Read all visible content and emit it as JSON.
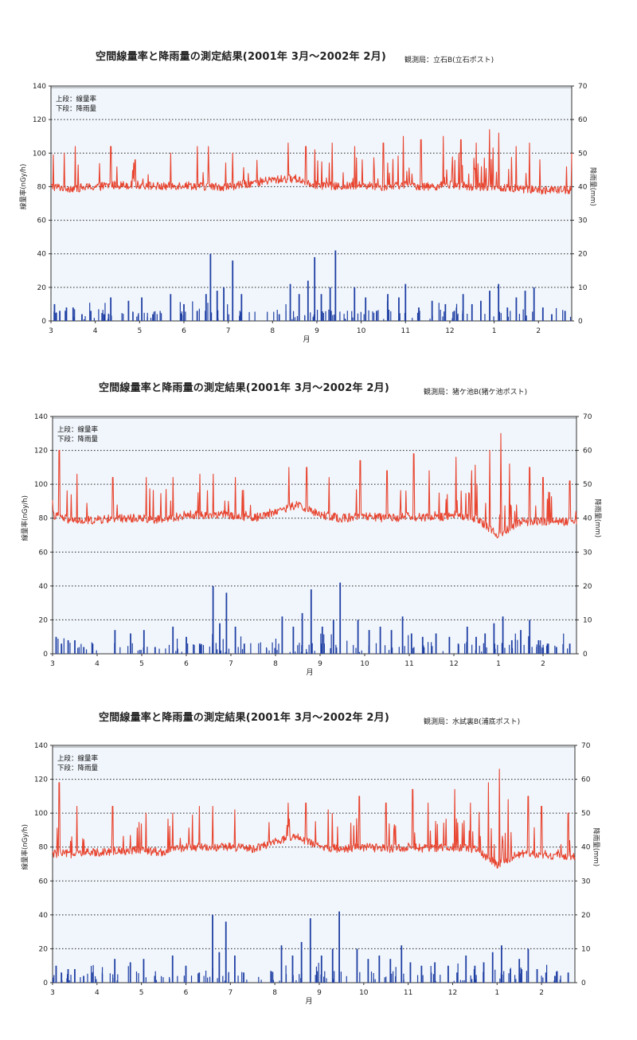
{
  "chart_data": [
    {
      "type": "line",
      "title": "空間線量率と降雨量の測定結果(2001年 3月～2002年 2月)",
      "station": "観測局：立石B(立石ポスト)",
      "legend_line1": "上段：線量率",
      "legend_line2": "下段：降雨量",
      "ylabel_left": "線量率(nGy/h)",
      "ylabel_right": "降雨量(mm)",
      "xlabel": "月",
      "x_ticks": [
        "3",
        "4",
        "5",
        "6",
        "7",
        "8",
        "9",
        "10",
        "11",
        "12",
        "1",
        "2"
      ],
      "yticks_left": [
        "0",
        "20",
        "40",
        "60",
        "80",
        "100",
        "120",
        "140"
      ],
      "yticks_right": [
        "0",
        "10",
        "20",
        "30",
        "40",
        "50",
        "60",
        "70"
      ],
      "ylim_left": [
        0,
        140
      ],
      "ylim_right": [
        0,
        70
      ],
      "grid": true,
      "colors": {
        "dose": "#e8442f",
        "rain": "#1f3fa3",
        "plot_bg": "#f1f6fc",
        "grid": "#222222"
      },
      "series": [
        {
          "name": "線量率",
          "axis": "left",
          "x": [
            3.0,
            3.5,
            4.0,
            4.5,
            5.0,
            5.5,
            6.0,
            6.5,
            7.0,
            7.5,
            8.0,
            8.5,
            9.0,
            9.5,
            10.0,
            10.5,
            11.0,
            11.5,
            12.0,
            12.5,
            13.0,
            13.5,
            14.0,
            14.75
          ],
          "baseline": [
            80,
            79,
            80,
            81,
            81,
            80,
            81,
            80,
            80,
            82,
            84,
            85,
            81,
            80,
            81,
            80,
            81,
            80,
            81,
            80,
            80,
            79,
            78,
            78
          ],
          "spikes": [
            [
              3.05,
              99
            ],
            [
              3.3,
              100
            ],
            [
              3.55,
              104
            ],
            [
              4.35,
              104
            ],
            [
              4.9,
              96
            ],
            [
              5.7,
              100
            ],
            [
              6.3,
              104
            ],
            [
              6.55,
              104
            ],
            [
              7.1,
              100
            ],
            [
              8.35,
              106
            ],
            [
              8.75,
              104
            ],
            [
              8.95,
              102
            ],
            [
              9.35,
              106
            ],
            [
              9.85,
              104
            ],
            [
              10.5,
              106
            ],
            [
              10.95,
              110
            ],
            [
              11.35,
              108
            ],
            [
              11.85,
              110
            ],
            [
              12.25,
              108
            ],
            [
              12.6,
              106
            ],
            [
              12.9,
              114
            ],
            [
              13.1,
              112
            ],
            [
              13.5,
              104
            ],
            [
              13.8,
              106
            ],
            [
              14.75,
              100
            ]
          ]
        },
        {
          "name": "降雨量",
          "axis": "right",
          "type": "bar",
          "x": [
            3.08,
            3.2,
            3.35,
            3.5,
            3.7,
            3.9,
            4.2,
            4.35,
            4.75,
            5.05,
            5.3,
            5.7,
            6.0,
            6.3,
            6.5,
            6.6,
            6.75,
            6.9,
            7.1,
            7.3,
            8.15,
            8.4,
            8.6,
            8.8,
            8.95,
            9.1,
            9.3,
            9.42,
            9.85,
            10.1,
            10.35,
            10.6,
            10.85,
            11.0,
            11.3,
            11.6,
            11.9,
            12.1,
            12.3,
            12.5,
            12.7,
            12.9,
            13.1,
            13.3,
            13.5,
            13.7,
            13.9,
            14.1,
            14.3,
            14.6
          ],
          "values": [
            5,
            3,
            4,
            4,
            2,
            3,
            2,
            7,
            6,
            7,
            2,
            8,
            5,
            3,
            8,
            20,
            9,
            10,
            18,
            8,
            2,
            11,
            8,
            12,
            19,
            8,
            10,
            21,
            10,
            7,
            3,
            8,
            7,
            11,
            4,
            6,
            5,
            3,
            8,
            5,
            6,
            9,
            11,
            4,
            7,
            9,
            10,
            4,
            2,
            3
          ]
        }
      ]
    },
    {
      "type": "line",
      "title": "空間線量率と降雨量の測定結果(2001年 3月～2002年 2月)",
      "station": "観測局：猪ケ池B(猪ケ池ポスト)",
      "legend_line1": "上段：線量率",
      "legend_line2": "下段：降雨量",
      "ylabel_left": "線量率(nGy/h)",
      "ylabel_right": "降雨量(mm)",
      "xlabel": "月",
      "x_ticks": [
        "3",
        "4",
        "5",
        "6",
        "7",
        "8",
        "9",
        "10",
        "11",
        "12",
        "1",
        "2"
      ],
      "yticks_left": [
        "0",
        "20",
        "40",
        "60",
        "80",
        "100",
        "120",
        "140"
      ],
      "yticks_right": [
        "0",
        "10",
        "20",
        "30",
        "40",
        "50",
        "60",
        "70"
      ],
      "ylim_left": [
        0,
        140
      ],
      "ylim_right": [
        0,
        70
      ],
      "grid": true,
      "colors": {
        "dose": "#e8442f",
        "rain": "#1f3fa3",
        "plot_bg": "#f1f6fc",
        "grid": "#222222"
      },
      "series": [
        {
          "name": "線量率",
          "axis": "left",
          "x": [
            3.0,
            3.5,
            4.0,
            4.5,
            5.0,
            5.5,
            6.0,
            6.5,
            7.0,
            7.5,
            8.0,
            8.5,
            9.0,
            9.5,
            10.0,
            10.5,
            11.0,
            11.5,
            12.0,
            12.5,
            13.0,
            13.5,
            14.0,
            14.75
          ],
          "baseline": [
            82,
            78,
            79,
            80,
            80,
            79,
            82,
            82,
            82,
            80,
            84,
            88,
            82,
            80,
            81,
            80,
            81,
            80,
            82,
            80,
            70,
            78,
            78,
            78
          ],
          "spikes": [
            [
              3.15,
              120
            ],
            [
              3.55,
              106
            ],
            [
              4.35,
              104
            ],
            [
              5.1,
              104
            ],
            [
              5.7,
              104
            ],
            [
              6.3,
              106
            ],
            [
              6.6,
              106
            ],
            [
              7.1,
              104
            ],
            [
              8.3,
              110
            ],
            [
              8.7,
              110
            ],
            [
              9.2,
              104
            ],
            [
              9.9,
              114
            ],
            [
              10.5,
              108
            ],
            [
              11.1,
              118
            ],
            [
              11.45,
              108
            ],
            [
              12.05,
              116
            ],
            [
              12.4,
              108
            ],
            [
              12.8,
              120
            ],
            [
              13.05,
              130
            ],
            [
              13.25,
              112
            ],
            [
              13.7,
              110
            ],
            [
              14.0,
              104
            ],
            [
              14.6,
              102
            ]
          ]
        },
        {
          "name": "降雨量",
          "axis": "right",
          "type": "bar",
          "x": [
            3.08,
            3.2,
            3.35,
            3.5,
            3.7,
            3.9,
            4.4,
            4.75,
            5.05,
            5.3,
            5.7,
            6.0,
            6.3,
            6.6,
            6.75,
            6.9,
            7.1,
            7.3,
            8.15,
            8.4,
            8.6,
            8.8,
            9.05,
            9.3,
            9.45,
            9.85,
            10.1,
            10.35,
            10.6,
            10.85,
            11.05,
            11.3,
            11.6,
            11.9,
            12.1,
            12.3,
            12.5,
            12.7,
            12.9,
            13.1,
            13.3,
            13.5,
            13.7,
            13.9,
            14.1,
            14.3,
            14.6
          ],
          "values": [
            5,
            3,
            4,
            4,
            2,
            3,
            7,
            6,
            7,
            2,
            8,
            5,
            3,
            20,
            9,
            18,
            8,
            3,
            11,
            8,
            12,
            19,
            8,
            10,
            21,
            10,
            7,
            8,
            7,
            11,
            6,
            5,
            6,
            5,
            3,
            8,
            5,
            6,
            9,
            11,
            4,
            7,
            10,
            4,
            3,
            2,
            3
          ]
        }
      ]
    },
    {
      "type": "line",
      "title": "空間線量率と降雨量の測定結果(2001年 3月～2002年 2月)",
      "station": "観測局：水試裏B(浦底ポスト)",
      "legend_line1": "上段：線量率",
      "legend_line2": "下段：降雨量",
      "ylabel_left": "線量率(nGy/h)",
      "ylabel_right": "降雨量(mm)",
      "xlabel": "月",
      "x_ticks": [
        "3",
        "4",
        "5",
        "6",
        "7",
        "8",
        "9",
        "10",
        "11",
        "12",
        "1",
        "2"
      ],
      "yticks_left": [
        "0",
        "20",
        "40",
        "60",
        "80",
        "100",
        "120",
        "140"
      ],
      "yticks_right": [
        "0",
        "10",
        "20",
        "30",
        "40",
        "50",
        "60",
        "70"
      ],
      "ylim_left": [
        0,
        140
      ],
      "ylim_right": [
        0,
        70
      ],
      "grid": true,
      "colors": {
        "dose": "#e8442f",
        "rain": "#1f3fa3",
        "plot_bg": "#f1f6fc",
        "grid": "#222222"
      },
      "series": [
        {
          "name": "線量率",
          "axis": "left",
          "x": [
            3.0,
            3.5,
            4.0,
            4.5,
            5.0,
            5.5,
            6.0,
            6.5,
            7.0,
            7.5,
            8.0,
            8.5,
            9.0,
            9.5,
            10.0,
            10.5,
            11.0,
            11.5,
            12.0,
            12.5,
            13.0,
            13.5,
            14.0,
            14.75
          ],
          "baseline": [
            76,
            76,
            77,
            78,
            78,
            77,
            80,
            80,
            80,
            79,
            83,
            86,
            80,
            79,
            80,
            79,
            80,
            79,
            80,
            79,
            70,
            76,
            75,
            75
          ],
          "spikes": [
            [
              3.15,
              118
            ],
            [
              3.55,
              104
            ],
            [
              4.35,
              104
            ],
            [
              5.1,
              100
            ],
            [
              5.7,
              100
            ],
            [
              6.3,
              104
            ],
            [
              6.6,
              104
            ],
            [
              7.1,
              102
            ],
            [
              8.3,
              106
            ],
            [
              8.7,
              106
            ],
            [
              9.2,
              102
            ],
            [
              9.9,
              110
            ],
            [
              10.5,
              106
            ],
            [
              11.1,
              114
            ],
            [
              11.45,
              106
            ],
            [
              12.05,
              114
            ],
            [
              12.4,
              106
            ],
            [
              12.8,
              118
            ],
            [
              13.05,
              126
            ],
            [
              13.25,
              108
            ],
            [
              13.7,
              110
            ],
            [
              14.0,
              104
            ],
            [
              14.6,
              100
            ]
          ]
        },
        {
          "name": "降雨量",
          "axis": "right",
          "type": "bar",
          "x": [
            3.08,
            3.2,
            3.35,
            3.5,
            3.7,
            3.9,
            4.4,
            4.75,
            5.05,
            5.3,
            5.7,
            6.0,
            6.3,
            6.6,
            6.75,
            6.9,
            7.1,
            7.3,
            8.15,
            8.4,
            8.6,
            8.8,
            9.05,
            9.3,
            9.45,
            9.85,
            10.1,
            10.35,
            10.6,
            10.85,
            11.05,
            11.3,
            11.6,
            11.9,
            12.1,
            12.3,
            12.5,
            12.7,
            12.9,
            13.1,
            13.3,
            13.5,
            13.7,
            13.9,
            14.1,
            14.3,
            14.6
          ],
          "values": [
            5,
            3,
            4,
            4,
            2,
            3,
            7,
            6,
            7,
            2,
            8,
            5,
            3,
            20,
            9,
            18,
            8,
            3,
            11,
            8,
            12,
            19,
            8,
            10,
            21,
            10,
            7,
            8,
            7,
            11,
            6,
            5,
            6,
            5,
            3,
            8,
            5,
            6,
            9,
            11,
            4,
            7,
            10,
            4,
            3,
            2,
            3
          ]
        }
      ]
    }
  ]
}
